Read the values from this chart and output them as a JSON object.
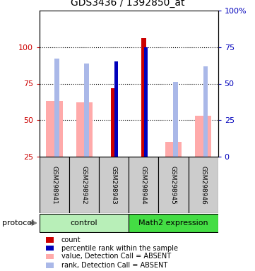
{
  "title": "GDS3436 / 1392850_at",
  "samples": [
    "GSM298941",
    "GSM298942",
    "GSM298943",
    "GSM298944",
    "GSM298945",
    "GSM298946"
  ],
  "groups": [
    {
      "name": "control",
      "color_light": "#c8f0c8",
      "color_mid": "#55dd55",
      "samples": [
        0,
        1,
        2
      ]
    },
    {
      "name": "Math2 expression",
      "color_light": "#55dd55",
      "color_mid": "#55dd55",
      "samples": [
        3,
        4,
        5
      ]
    }
  ],
  "count_values": [
    null,
    null,
    72,
    106,
    null,
    null
  ],
  "count_color": "#cc0000",
  "rank_values": [
    null,
    null,
    65,
    75,
    null,
    null
  ],
  "rank_color": "#0000bb",
  "absent_value_values": [
    63,
    62,
    null,
    null,
    35,
    53
  ],
  "absent_value_color": "#ffaaaa",
  "absent_rank_values": [
    67,
    64,
    null,
    null,
    51,
    62
  ],
  "absent_rank_color": "#aab8e8",
  "ylim_left": [
    25,
    125
  ],
  "ylim_right": [
    0,
    100
  ],
  "yticks_left": [
    25,
    50,
    75,
    100
  ],
  "yticks_right": [
    0,
    25,
    50,
    75,
    100
  ],
  "ytick_labels_right": [
    "0",
    "25",
    "50",
    "75",
    "100%"
  ],
  "grid_dotted_at": [
    50,
    75,
    100
  ],
  "sample_box_color": "#cccccc",
  "protocol_label": "protocol",
  "legend_items": [
    {
      "label": "count",
      "color": "#cc0000"
    },
    {
      "label": "percentile rank within the sample",
      "color": "#0000bb"
    },
    {
      "label": "value, Detection Call = ABSENT",
      "color": "#ffaaaa"
    },
    {
      "label": "rank, Detection Call = ABSENT",
      "color": "#aab8e8"
    }
  ]
}
